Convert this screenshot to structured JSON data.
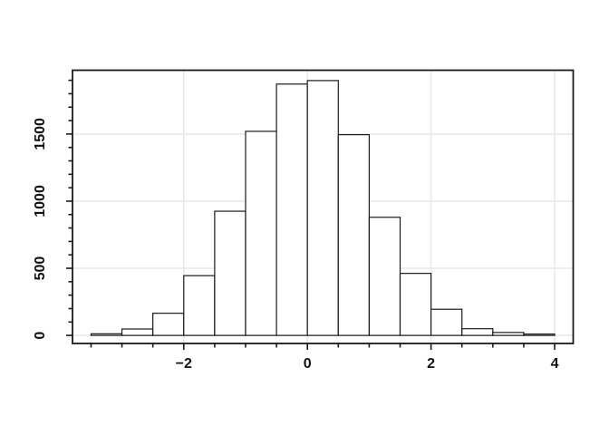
{
  "chart_data": {
    "type": "bar",
    "subtype": "histogram",
    "bin_edges": [
      -3.5,
      -3.0,
      -2.5,
      -2.0,
      -1.5,
      -1.0,
      -0.5,
      0.0,
      0.5,
      1.0,
      1.5,
      2.0,
      2.5,
      3.0,
      3.5,
      4.0
    ],
    "counts": [
      12,
      48,
      165,
      445,
      925,
      1520,
      1872,
      1898,
      1495,
      880,
      462,
      195,
      50,
      22,
      10
    ],
    "xlim": [
      -3.8,
      4.3
    ],
    "ylim": [
      -60,
      1975
    ],
    "x_major_ticks": [
      -2,
      0,
      2,
      4
    ],
    "x_tick_labels": [
      "−2",
      "0",
      "2",
      "4"
    ],
    "x_minor_step": 0.5,
    "x_minor_range": [
      -3.5,
      4.0
    ],
    "y_major_ticks": [
      0,
      500,
      1000,
      1500
    ],
    "y_tick_labels": [
      "0",
      "500",
      "1000",
      "1500"
    ],
    "y_minor_step": 100,
    "y_minor_range": [
      0,
      1900
    ],
    "grid": true,
    "grid_x_values": [
      -2,
      0,
      2,
      4
    ],
    "grid_y_values": [
      0,
      500,
      1000,
      1500
    ],
    "legend": "none",
    "colors": {
      "background": "#ffffff",
      "bar_fill": "#ffffff",
      "bar_stroke": "#1a1a1a",
      "grid": "#e8e8e8",
      "axis": "#1a1a1a",
      "tick": "#1a1a1a",
      "label": "#111111"
    }
  }
}
